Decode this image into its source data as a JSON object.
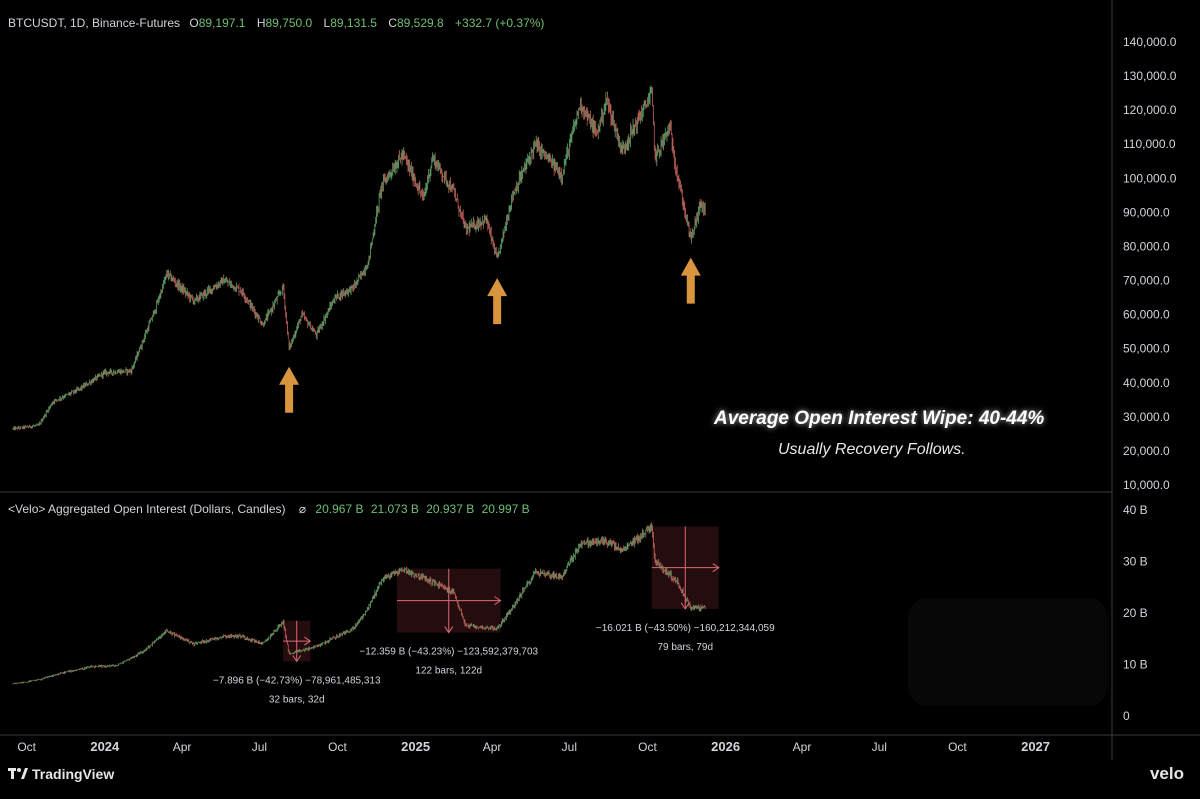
{
  "price_header": {
    "symbol": "BTCUSDT, 1D, Binance-Futures",
    "o_label": "O",
    "o": "89,197.1",
    "h_label": "H",
    "h": "89,750.0",
    "l_label": "L",
    "l": "89,131.5",
    "c_label": "C",
    "c": "89,529.8",
    "change": "+332.7 (+0.37%)"
  },
  "oi_header": {
    "title": "<Velo> Aggregated Open Interest (Dollars, Candles)",
    "symbol": "⌀",
    "v1": "20.967 B",
    "v2": "21.073 B",
    "v3": "20.937 B",
    "v4": "20.997 B"
  },
  "overlay": {
    "title": "Average Open Interest Wipe: 40-44%",
    "subtitle": "Usually Recovery Follows."
  },
  "footer": {
    "left_logo": "TradingView",
    "right_logo": "velo"
  },
  "colors": {
    "up": "#5fa36b",
    "down": "#c0635a",
    "arrow": "#d9953e",
    "grid": "#1a1a1a"
  },
  "chart_data": [
    {
      "type": "candlestick",
      "title": "BTCUSDT, 1D, Binance-Futures",
      "y_ticks": [
        "140,000.0",
        "130,000.0",
        "120,000.0",
        "110,000.0",
        "100,000.0",
        "90,000.0",
        "80,000.0",
        "70,000.0",
        "60,000.0",
        "50,000.0",
        "40,000.0",
        "30,000.0",
        "20,000.0",
        "10,000.0"
      ],
      "ylim": [
        10000,
        145000
      ],
      "x_ticks": [
        "Oct",
        "2024",
        "Apr",
        "Jul",
        "Oct",
        "2025",
        "Apr",
        "Jul",
        "Oct",
        "2026",
        "Apr",
        "Jul",
        "Oct",
        "2027"
      ],
      "series_points": [
        [
          "2023-09-15",
          26500
        ],
        [
          "2023-10-15",
          27500
        ],
        [
          "2023-11-01",
          34500
        ],
        [
          "2023-12-01",
          38000
        ],
        [
          "2024-01-01",
          43000
        ],
        [
          "2024-02-01",
          43500
        ],
        [
          "2024-03-01",
          62000
        ],
        [
          "2024-03-14",
          72000
        ],
        [
          "2024-04-15",
          64000
        ],
        [
          "2024-05-20",
          70000
        ],
        [
          "2024-06-10",
          67000
        ],
        [
          "2024-07-05",
          57000
        ],
        [
          "2024-07-29",
          68000
        ],
        [
          "2024-08-05",
          50000
        ],
        [
          "2024-08-20",
          60000
        ],
        [
          "2024-09-06",
          54000
        ],
        [
          "2024-09-28",
          65000
        ],
        [
          "2024-10-20",
          68000
        ],
        [
          "2024-11-06",
          75000
        ],
        [
          "2024-11-22",
          98000
        ],
        [
          "2024-12-17",
          107000
        ],
        [
          "2025-01-10",
          94000
        ],
        [
          "2025-01-21",
          106000
        ],
        [
          "2025-02-15",
          96000
        ],
        [
          "2025-03-01",
          85000
        ],
        [
          "2025-03-25",
          88000
        ],
        [
          "2025-04-07",
          76000
        ],
        [
          "2025-04-25",
          95000
        ],
        [
          "2025-05-22",
          110000
        ],
        [
          "2025-06-22",
          101000
        ],
        [
          "2025-07-14",
          122000
        ],
        [
          "2025-08-02",
          113000
        ],
        [
          "2025-08-14",
          123000
        ],
        [
          "2025-09-01",
          108000
        ],
        [
          "2025-10-06",
          125000
        ],
        [
          "2025-10-10",
          106000
        ],
        [
          "2025-10-27",
          115000
        ],
        [
          "2025-11-05",
          101000
        ],
        [
          "2025-11-21",
          82000
        ],
        [
          "2025-12-03",
          93000
        ],
        [
          "2025-12-08",
          89500
        ]
      ],
      "markers": [
        {
          "type": "arrow-up",
          "date": "2024-08-05"
        },
        {
          "type": "arrow-up",
          "date": "2025-04-07"
        },
        {
          "type": "arrow-up",
          "date": "2025-11-21"
        }
      ]
    },
    {
      "type": "candlestick",
      "title": "<Velo> Aggregated Open Interest (Dollars, Candles)",
      "y_ticks": [
        "40 B",
        "30 B",
        "20 B",
        "10 B",
        "0"
      ],
      "ylim": [
        0,
        40
      ],
      "series_points": [
        [
          "2023-09-15",
          6.2
        ],
        [
          "2023-10-15",
          7.0
        ],
        [
          "2023-11-15",
          8.5
        ],
        [
          "2023-12-15",
          9.5
        ],
        [
          "2024-01-15",
          9.8
        ],
        [
          "2024-02-15",
          12.5
        ],
        [
          "2024-03-14",
          16.5
        ],
        [
          "2024-04-15",
          14.0
        ],
        [
          "2024-05-20",
          15.5
        ],
        [
          "2024-06-10",
          15.5
        ],
        [
          "2024-07-05",
          14.0
        ],
        [
          "2024-07-29",
          18.3
        ],
        [
          "2024-08-05",
          12.0
        ],
        [
          "2024-09-06",
          13.5
        ],
        [
          "2024-10-20",
          17.0
        ],
        [
          "2024-11-06",
          21.0
        ],
        [
          "2024-11-22",
          26.5
        ],
        [
          "2024-12-17",
          28.5
        ],
        [
          "2025-01-21",
          26.0
        ],
        [
          "2025-02-15",
          24.0
        ],
        [
          "2025-03-01",
          17.5
        ],
        [
          "2025-04-07",
          17.0
        ],
        [
          "2025-04-25",
          21.0
        ],
        [
          "2025-05-22",
          28.0
        ],
        [
          "2025-06-22",
          27.0
        ],
        [
          "2025-07-14",
          33.5
        ],
        [
          "2025-08-14",
          34.0
        ],
        [
          "2025-09-01",
          32.0
        ],
        [
          "2025-10-06",
          36.8
        ],
        [
          "2025-10-10",
          30.0
        ],
        [
          "2025-10-27",
          27.5
        ],
        [
          "2025-11-05",
          26.0
        ],
        [
          "2025-11-21",
          21.0
        ],
        [
          "2025-12-08",
          21.0
        ]
      ],
      "measurements": [
        {
          "start": "2024-07-29",
          "end": "2024-08-30",
          "top": 18.5,
          "bottom": 10.6,
          "line1": "−7.896 B (−42.73%) −78,961,485,313",
          "line2": "32 bars, 32d"
        },
        {
          "start": "2024-12-10",
          "end": "2025-04-11",
          "top": 28.6,
          "bottom": 16.2,
          "line1": "−12.359 B (−43.23%) −123,592,379,703",
          "line2": "122 bars, 122d"
        },
        {
          "start": "2025-10-06",
          "end": "2025-12-24",
          "top": 36.8,
          "bottom": 20.8,
          "line1": "−16.021 B (−43.50%) −160,212,344,059",
          "line2": "79 bars, 79d"
        }
      ]
    }
  ]
}
